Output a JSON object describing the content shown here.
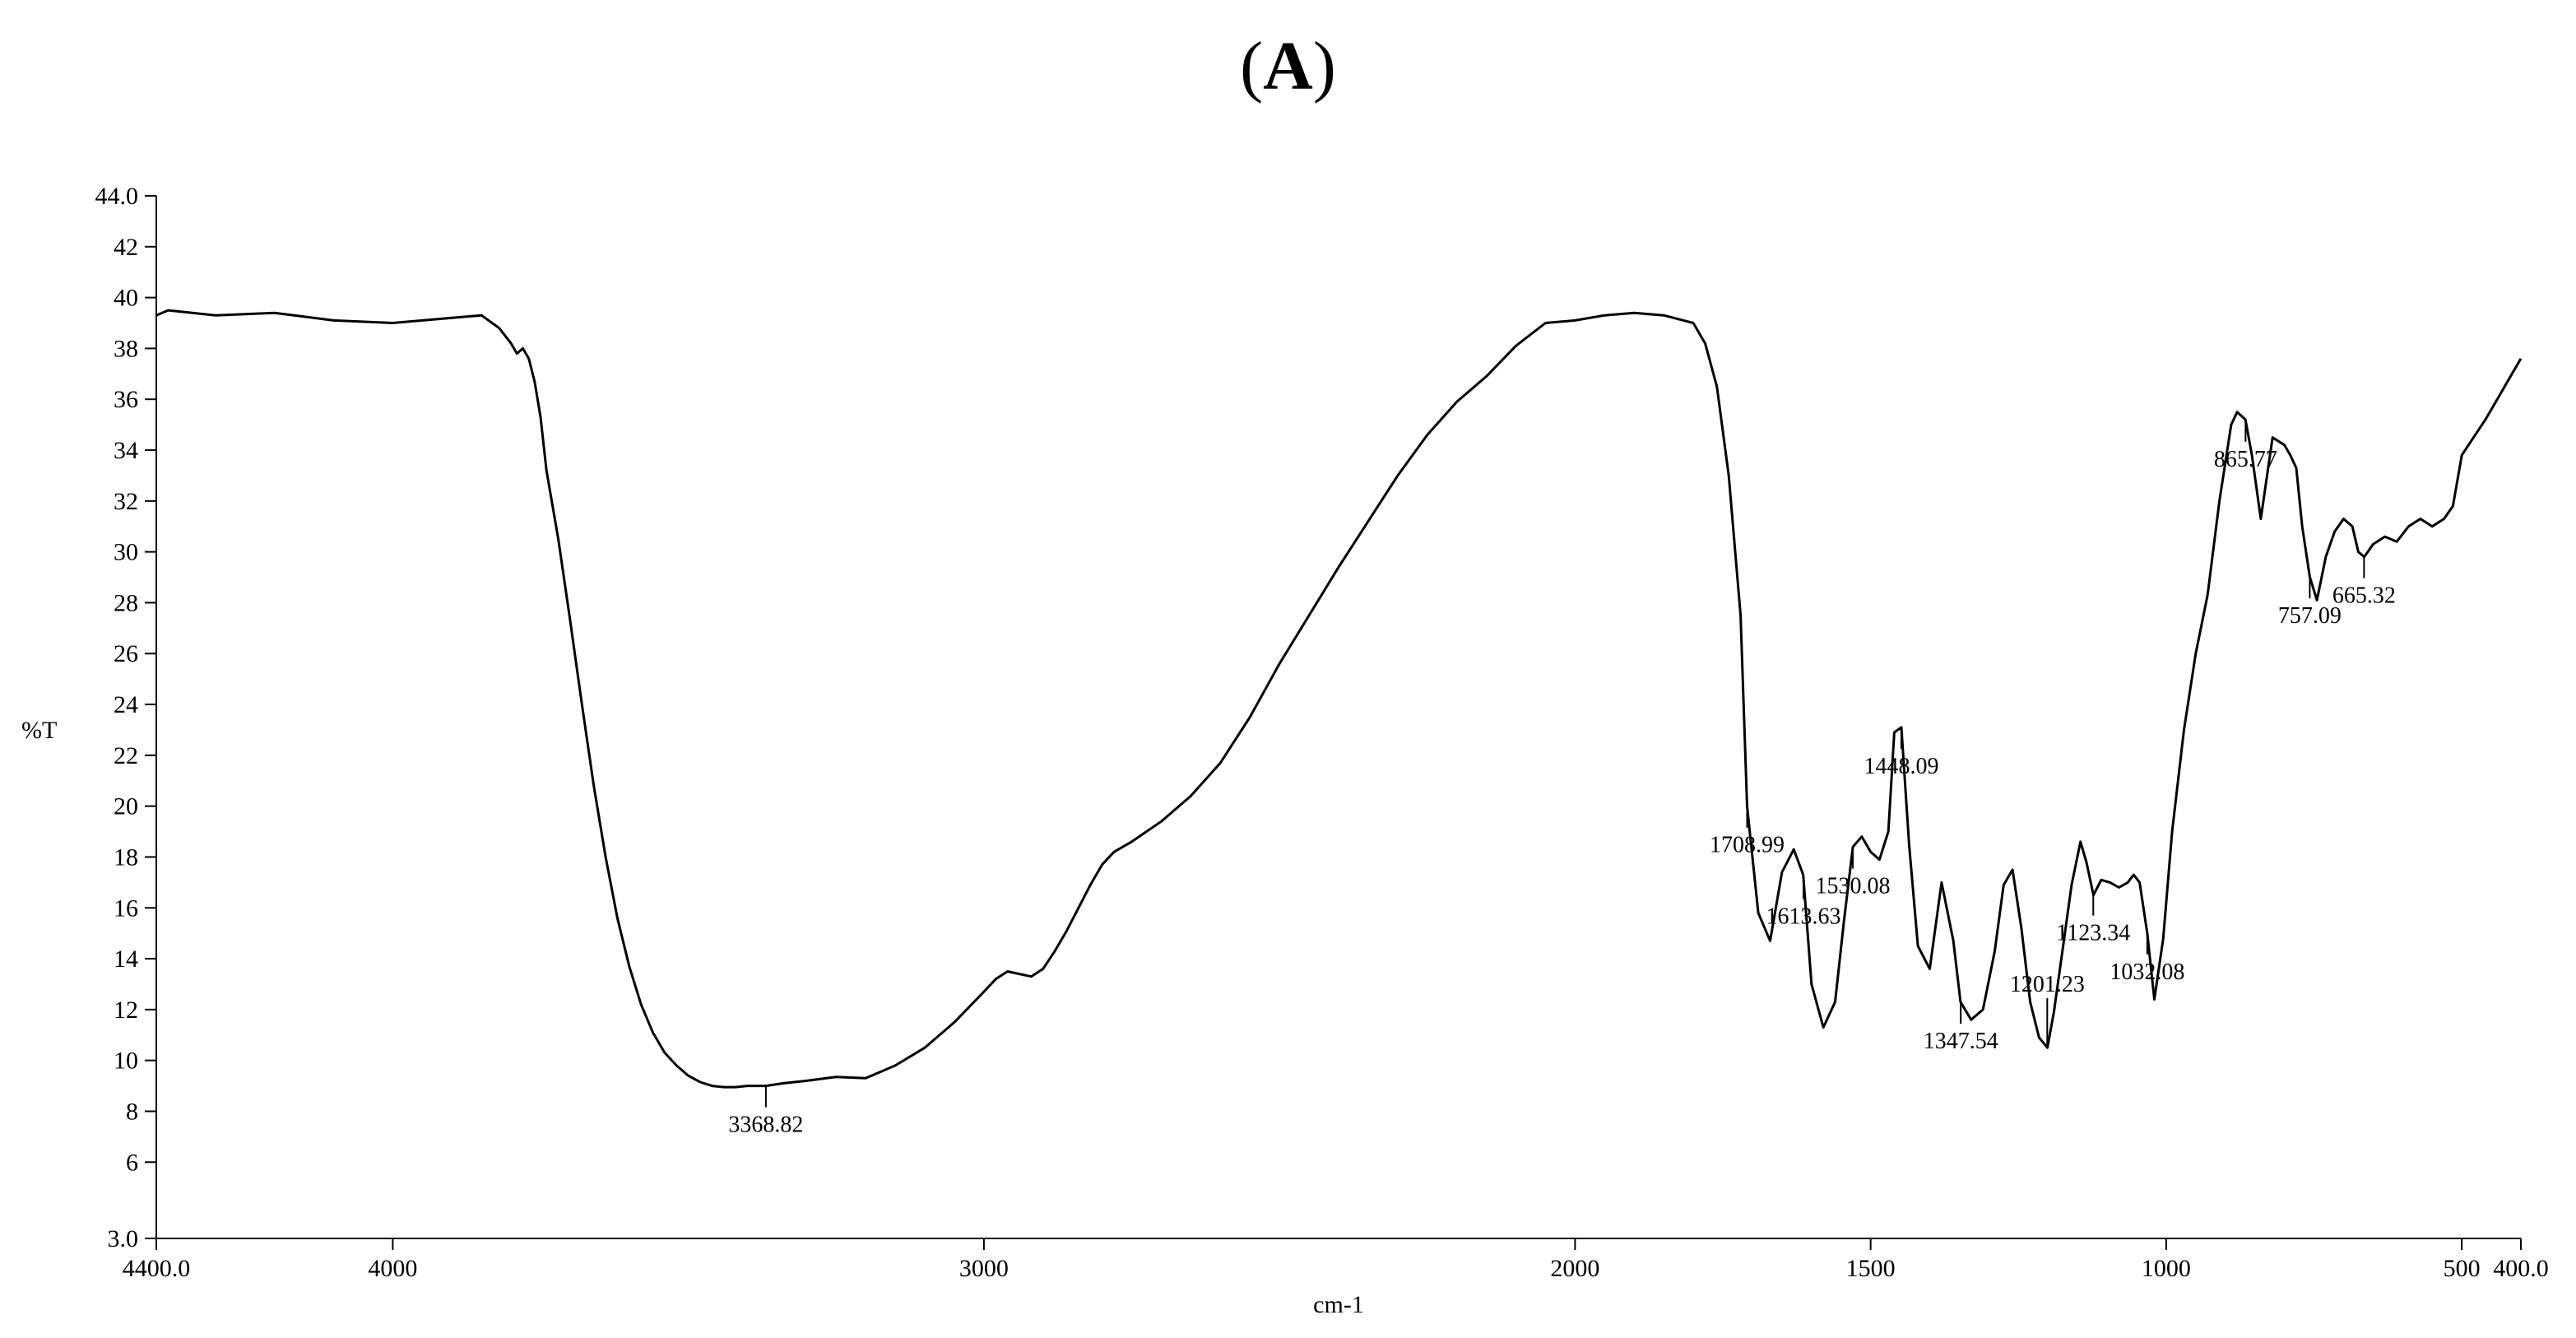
{
  "panel": {
    "open": "(",
    "letter": "A",
    "close": ")"
  },
  "chart_data": {
    "type": "line",
    "title": "",
    "xlabel": "cm-1",
    "ylabel": "%T",
    "x_axis": {
      "min": 400.0,
      "max": 4400.0,
      "reversed": true,
      "ticks": [
        {
          "value": 4400,
          "label": "4400.0"
        },
        {
          "value": 4000,
          "label": "4000"
        },
        {
          "value": 3000,
          "label": "3000"
        },
        {
          "value": 2000,
          "label": "2000"
        },
        {
          "value": 1500,
          "label": "1500"
        },
        {
          "value": 1000,
          "label": "1000"
        },
        {
          "value": 500,
          "label": "500"
        },
        {
          "value": 400,
          "label": "400.0"
        }
      ]
    },
    "y_axis": {
      "min": 3.0,
      "max": 44.0,
      "ticks": [
        {
          "value": 3,
          "label": "3.0"
        },
        {
          "value": 6,
          "label": "6"
        },
        {
          "value": 8,
          "label": "8"
        },
        {
          "value": 10,
          "label": "10"
        },
        {
          "value": 12,
          "label": "12"
        },
        {
          "value": 14,
          "label": "14"
        },
        {
          "value": 16,
          "label": "16"
        },
        {
          "value": 18,
          "label": "18"
        },
        {
          "value": 20,
          "label": "20"
        },
        {
          "value": 22,
          "label": "22"
        },
        {
          "value": 24,
          "label": "24"
        },
        {
          "value": 26,
          "label": "26"
        },
        {
          "value": 28,
          "label": "28"
        },
        {
          "value": 30,
          "label": "30"
        },
        {
          "value": 32,
          "label": "32"
        },
        {
          "value": 34,
          "label": "34"
        },
        {
          "value": 36,
          "label": "36"
        },
        {
          "value": 38,
          "label": "38"
        },
        {
          "value": 40,
          "label": "40"
        },
        {
          "value": 42,
          "label": "42"
        },
        {
          "value": 44,
          "label": "44.0"
        }
      ]
    },
    "grid": false,
    "legend": "none",
    "series": [
      {
        "x": [
          4400,
          4380,
          4300,
          4200,
          4100,
          4000,
          3900,
          3850,
          3820,
          3800,
          3790,
          3780,
          3770,
          3760,
          3750,
          3740,
          3720,
          3700,
          3680,
          3660,
          3640,
          3620,
          3600,
          3580,
          3560,
          3540,
          3520,
          3500,
          3480,
          3460,
          3440,
          3420,
          3400,
          3380,
          3369,
          3340,
          3300,
          3250,
          3200,
          3150,
          3100,
          3050,
          3000,
          2980,
          2960,
          2940,
          2920,
          2900,
          2880,
          2860,
          2840,
          2820,
          2800,
          2780,
          2750,
          2700,
          2650,
          2600,
          2550,
          2500,
          2450,
          2400,
          2350,
          2300,
          2250,
          2200,
          2150,
          2100,
          2050,
          2000,
          1950,
          1900,
          1850,
          1800,
          1780,
          1760,
          1740,
          1720,
          1709,
          1690,
          1670,
          1650,
          1630,
          1614,
          1600,
          1580,
          1560,
          1545,
          1530,
          1515,
          1500,
          1485,
          1470,
          1460,
          1448,
          1435,
          1420,
          1400,
          1380,
          1360,
          1348,
          1330,
          1310,
          1290,
          1275,
          1260,
          1245,
          1230,
          1215,
          1201,
          1190,
          1175,
          1160,
          1145,
          1135,
          1123,
          1110,
          1095,
          1080,
          1065,
          1055,
          1045,
          1032,
          1020,
          1005,
          990,
          970,
          950,
          930,
          910,
          890,
          880,
          866,
          855,
          840,
          820,
          800,
          790,
          780,
          770,
          757,
          745,
          730,
          715,
          700,
          685,
          675,
          665,
          650,
          630,
          610,
          590,
          570,
          550,
          530,
          515,
          500,
          480,
          460,
          440,
          420,
          400
        ],
        "y": [
          39.3,
          39.5,
          39.3,
          39.4,
          39.1,
          39.0,
          39.2,
          39.3,
          38.8,
          38.2,
          37.8,
          38.0,
          37.6,
          36.7,
          35.3,
          33.2,
          30.5,
          27.3,
          24.0,
          20.8,
          18.0,
          15.6,
          13.7,
          12.2,
          11.1,
          10.3,
          9.8,
          9.4,
          9.15,
          9.0,
          8.95,
          8.95,
          9.0,
          9.0,
          9.0,
          9.1,
          9.2,
          9.35,
          9.3,
          9.8,
          10.5,
          11.5,
          12.7,
          13.2,
          13.5,
          13.4,
          13.3,
          13.6,
          14.3,
          15.1,
          16.0,
          16.9,
          17.7,
          18.2,
          18.6,
          19.4,
          20.4,
          21.7,
          23.5,
          25.6,
          27.5,
          29.4,
          31.2,
          33.0,
          34.6,
          35.9,
          36.9,
          38.1,
          39.0,
          39.1,
          39.3,
          39.4,
          39.3,
          39.0,
          38.2,
          36.5,
          33.0,
          27.5,
          20.0,
          15.8,
          14.7,
          17.4,
          18.3,
          17.3,
          13.0,
          11.3,
          12.3,
          15.5,
          18.4,
          18.8,
          18.2,
          17.9,
          19.0,
          22.9,
          23.1,
          18.5,
          14.5,
          13.6,
          17.0,
          14.7,
          12.3,
          11.6,
          12.0,
          14.3,
          16.9,
          17.5,
          15.2,
          12.3,
          10.9,
          10.5,
          11.9,
          14.4,
          16.9,
          18.6,
          17.8,
          16.5,
          17.1,
          17.0,
          16.8,
          17.0,
          17.3,
          17.0,
          15.0,
          12.4,
          14.8,
          19.0,
          23.0,
          26.0,
          28.3,
          32.0,
          35.0,
          35.5,
          35.2,
          33.8,
          31.3,
          34.5,
          34.2,
          33.8,
          33.3,
          31.0,
          29.0,
          28.1,
          29.8,
          30.8,
          31.3,
          31.0,
          30.0,
          29.8,
          30.3,
          30.6,
          30.4,
          31.0,
          31.3,
          31.0,
          31.3,
          31.8,
          33.8,
          34.5,
          35.2,
          36.0,
          36.8,
          37.6
        ]
      }
    ],
    "annotations": [
      {
        "x": 3368.82,
        "label": "3368.82"
      },
      {
        "x": 1708.99,
        "label": "1708.99"
      },
      {
        "x": 1613.63,
        "label": "1613.63"
      },
      {
        "x": 1530.08,
        "label": "1530.08"
      },
      {
        "x": 1448.09,
        "label": "1448.09"
      },
      {
        "x": 1347.54,
        "label": "1347.54"
      },
      {
        "x": 1201.23,
        "label": "1201.23"
      },
      {
        "x": 1123.34,
        "label": "1123.34"
      },
      {
        "x": 1032.08,
        "label": "1032.08"
      },
      {
        "x": 865.77,
        "label": "865.77"
      },
      {
        "x": 757.09,
        "label": "757.09"
      },
      {
        "x": 665.32,
        "label": "665.32"
      }
    ]
  }
}
